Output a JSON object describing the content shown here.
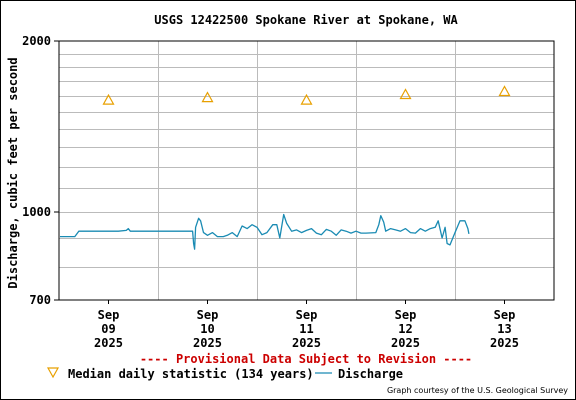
{
  "chart_data": {
    "type": "line",
    "title": "USGS 12422500 Spokane River at Spokane, WA",
    "ylabel": "Discharge, cubic feet per second",
    "xlabel": "",
    "y_scale": "log",
    "ylim": [
      700,
      2000
    ],
    "y_ticks": [
      {
        "value": 2000,
        "label": "2000"
      },
      {
        "value": 1000,
        "label": "1000"
      },
      {
        "value": 700,
        "label": "700"
      }
    ],
    "x_start_day": 8.5,
    "x_end_day": 13.5,
    "x_ticks": [
      {
        "day": 9,
        "month": "Sep",
        "date": "09",
        "year": "2025"
      },
      {
        "day": 10,
        "month": "Sep",
        "date": "10",
        "year": "2025"
      },
      {
        "day": 11,
        "month": "Sep",
        "date": "11",
        "year": "2025"
      },
      {
        "day": 12,
        "month": "Sep",
        "date": "12",
        "year": "2025"
      },
      {
        "day": 13,
        "month": "Sep",
        "date": "13",
        "year": "2025"
      }
    ],
    "grid": true,
    "series": [
      {
        "name": "Discharge",
        "color": "#1a8bb3",
        "style": "line",
        "points": [
          [
            8.51,
            905
          ],
          [
            8.66,
            905
          ],
          [
            8.7,
            925
          ],
          [
            8.8,
            925
          ],
          [
            9.1,
            925
          ],
          [
            9.18,
            928
          ],
          [
            9.2,
            935
          ],
          [
            9.22,
            925
          ],
          [
            9.35,
            925
          ],
          [
            9.57,
            925
          ],
          [
            9.85,
            925
          ],
          [
            9.86,
            880
          ],
          [
            9.87,
            860
          ],
          [
            9.88,
            940
          ],
          [
            9.91,
            975
          ],
          [
            9.93,
            965
          ],
          [
            9.96,
            920
          ],
          [
            10.0,
            910
          ],
          [
            10.05,
            920
          ],
          [
            10.1,
            905
          ],
          [
            10.16,
            905
          ],
          [
            10.2,
            910
          ],
          [
            10.25,
            920
          ],
          [
            10.3,
            905
          ],
          [
            10.35,
            945
          ],
          [
            10.4,
            935
          ],
          [
            10.45,
            950
          ],
          [
            10.5,
            940
          ],
          [
            10.55,
            912
          ],
          [
            10.6,
            920
          ],
          [
            10.66,
            950
          ],
          [
            10.7,
            950
          ],
          [
            10.73,
            900
          ],
          [
            10.77,
            990
          ],
          [
            10.8,
            955
          ],
          [
            10.85,
            925
          ],
          [
            10.9,
            930
          ],
          [
            10.95,
            920
          ],
          [
            11.0,
            928
          ],
          [
            11.05,
            935
          ],
          [
            11.1,
            918
          ],
          [
            11.15,
            912
          ],
          [
            11.2,
            932
          ],
          [
            11.25,
            925
          ],
          [
            11.3,
            910
          ],
          [
            11.35,
            930
          ],
          [
            11.4,
            925
          ],
          [
            11.45,
            918
          ],
          [
            11.5,
            925
          ],
          [
            11.55,
            918
          ],
          [
            11.6,
            918
          ],
          [
            11.7,
            920
          ],
          [
            11.73,
            950
          ],
          [
            11.75,
            985
          ],
          [
            11.78,
            960
          ],
          [
            11.8,
            925
          ],
          [
            11.85,
            935
          ],
          [
            11.9,
            930
          ],
          [
            11.95,
            925
          ],
          [
            12.0,
            935
          ],
          [
            12.05,
            920
          ],
          [
            12.1,
            918
          ],
          [
            12.15,
            935
          ],
          [
            12.2,
            925
          ],
          [
            12.25,
            935
          ],
          [
            12.3,
            940
          ],
          [
            12.33,
            965
          ],
          [
            12.37,
            900
          ],
          [
            12.4,
            940
          ],
          [
            12.42,
            880
          ],
          [
            12.45,
            875
          ],
          [
            12.5,
            920
          ],
          [
            12.55,
            965
          ],
          [
            12.6,
            965
          ],
          [
            12.63,
            935
          ],
          [
            12.64,
            915
          ]
        ]
      },
      {
        "name": "Median daily statistic (134 years)",
        "color": "#e8a000",
        "style": "triangle",
        "points": [
          [
            9.0,
            1574
          ],
          [
            10.0,
            1590
          ],
          [
            11.0,
            1574
          ],
          [
            12.0,
            1610
          ],
          [
            13.0,
            1630
          ]
        ]
      }
    ],
    "annotations": {
      "provisional": "---- Provisional Data Subject to Revision ----",
      "courtesy": "Graph courtesy of the U.S. Geological Survey"
    }
  },
  "legend": {
    "median_label": "Median daily statistic (134 years)",
    "discharge_label": "Discharge"
  },
  "colors": {
    "gridline": "#bbbbbb",
    "provisional": "#cc0000"
  }
}
